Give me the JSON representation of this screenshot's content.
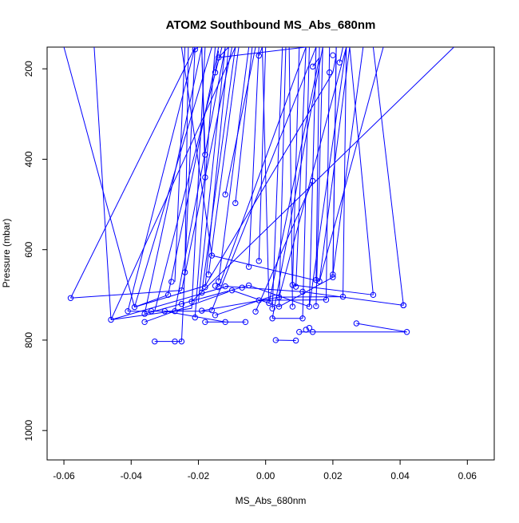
{
  "chart_data": {
    "type": "scatter",
    "title": "ATOM2 Southbound MS_Abs_680nm",
    "xlabel": "MS_Abs_680nm",
    "ylabel": "Pressure (mbar)",
    "xlim": [
      -0.065,
      0.068
    ],
    "ylim": [
      1065,
      152
    ],
    "y_reversed": true,
    "x_ticks": [
      -0.06,
      -0.04,
      -0.02,
      0.0,
      0.02,
      0.04,
      0.06
    ],
    "x_tick_labels": [
      "-0.06",
      "-0.04",
      "-0.02",
      "0.00",
      "0.02",
      "0.04",
      "0.06"
    ],
    "y_ticks": [
      200,
      400,
      600,
      800,
      1000
    ],
    "y_tick_labels": [
      "200",
      "400",
      "600",
      "800",
      "1000"
    ],
    "grid": false,
    "series_color": "#0000ff",
    "marker": "open-circle",
    "connected": true,
    "points": [
      {
        "x": -0.058,
        "y": 707
      },
      {
        "x": -0.025,
        "y": 690
      },
      {
        "x": -0.046,
        "y": 755
      },
      {
        "x": -0.039,
        "y": 727
      },
      {
        "x": -0.024,
        "y": 650
      },
      {
        "x": -0.041,
        "y": 736
      },
      {
        "x": -0.036,
        "y": 742
      },
      {
        "x": -0.034,
        "y": 736
      },
      {
        "x": -0.03,
        "y": 736
      },
      {
        "x": -0.027,
        "y": 736
      },
      {
        "x": -0.022,
        "y": 715
      },
      {
        "x": -0.036,
        "y": 760
      },
      {
        "x": -0.029,
        "y": 700
      },
      {
        "x": -0.025,
        "y": 720
      },
      {
        "x": -0.033,
        "y": 803
      },
      {
        "x": -0.027,
        "y": 803
      },
      {
        "x": -0.025,
        "y": 803
      },
      {
        "x": -0.028,
        "y": 671
      },
      {
        "x": -0.021,
        "y": 750
      },
      {
        "x": -0.018,
        "y": 760
      },
      {
        "x": -0.012,
        "y": 760
      },
      {
        "x": -0.006,
        "y": 760
      },
      {
        "x": -0.019,
        "y": 735
      },
      {
        "x": -0.015,
        "y": 745
      },
      {
        "x": -0.017,
        "y": 655
      },
      {
        "x": -0.018,
        "y": 683
      },
      {
        "x": -0.019,
        "y": 695
      },
      {
        "x": -0.014,
        "y": 670
      },
      {
        "x": -0.012,
        "y": 681
      },
      {
        "x": -0.016,
        "y": 613
      },
      {
        "x": -0.018,
        "y": 390
      },
      {
        "x": -0.018,
        "y": 440
      },
      {
        "x": -0.012,
        "y": 478
      },
      {
        "x": -0.009,
        "y": 497
      },
      {
        "x": -0.01,
        "y": 690
      },
      {
        "x": -0.007,
        "y": 684
      },
      {
        "x": -0.005,
        "y": 679
      },
      {
        "x": -0.005,
        "y": 638
      },
      {
        "x": -0.002,
        "y": 625
      },
      {
        "x": -0.002,
        "y": 712
      },
      {
        "x": -0.003,
        "y": 737
      },
      {
        "x": 0.001,
        "y": 718
      },
      {
        "x": 0.002,
        "y": 752
      },
      {
        "x": 0.002,
        "y": 730
      },
      {
        "x": 0.004,
        "y": 726
      },
      {
        "x": 0.004,
        "y": 705
      },
      {
        "x": 0.003,
        "y": 800
      },
      {
        "x": 0.009,
        "y": 801
      },
      {
        "x": 0.008,
        "y": 726
      },
      {
        "x": 0.008,
        "y": 678
      },
      {
        "x": 0.009,
        "y": 682
      },
      {
        "x": 0.011,
        "y": 693
      },
      {
        "x": 0.011,
        "y": 752
      },
      {
        "x": 0.01,
        "y": 782
      },
      {
        "x": 0.012,
        "y": 777
      },
      {
        "x": 0.013,
        "y": 773
      },
      {
        "x": 0.014,
        "y": 782
      },
      {
        "x": 0.013,
        "y": 726
      },
      {
        "x": 0.015,
        "y": 725
      },
      {
        "x": 0.015,
        "y": 667
      },
      {
        "x": 0.016,
        "y": 670
      },
      {
        "x": 0.018,
        "y": 711
      },
      {
        "x": 0.02,
        "y": 655
      },
      {
        "x": 0.02,
        "y": 661
      },
      {
        "x": 0.023,
        "y": 704
      },
      {
        "x": 0.027,
        "y": 763
      },
      {
        "x": 0.032,
        "y": 700
      },
      {
        "x": 0.041,
        "y": 723
      },
      {
        "x": 0.042,
        "y": 782
      },
      {
        "x": 0.014,
        "y": 448
      },
      {
        "x": -0.014,
        "y": 175
      },
      {
        "x": -0.015,
        "y": 208
      },
      {
        "x": -0.021,
        "y": 157
      },
      {
        "x": -0.002,
        "y": 171
      },
      {
        "x": 0.014,
        "y": 195
      },
      {
        "x": 0.019,
        "y": 208
      },
      {
        "x": 0.02,
        "y": 170
      },
      {
        "x": 0.022,
        "y": 186
      },
      {
        "x": 0.041,
        "y": 723
      },
      {
        "x": -0.014,
        "y": 683
      },
      {
        "x": -0.016,
        "y": 734
      },
      {
        "x": -0.015,
        "y": 680
      }
    ],
    "segments": [
      [
        -0.058,
        707,
        -0.025,
        690
      ],
      [
        -0.058,
        707,
        -0.058,
        707
      ],
      [
        -0.046,
        755,
        -0.022,
        730
      ],
      [
        -0.046,
        755,
        -0.011,
        680
      ],
      [
        -0.039,
        727,
        -0.029,
        700
      ],
      [
        -0.039,
        727,
        -0.018,
        680
      ],
      [
        -0.041,
        736,
        -0.016,
        736
      ],
      [
        -0.036,
        742,
        -0.005,
        679
      ],
      [
        -0.036,
        760,
        -0.011,
        693
      ],
      [
        -0.033,
        803,
        -0.025,
        803
      ],
      [
        -0.03,
        736,
        -0.012,
        760
      ],
      [
        -0.018,
        760,
        -0.006,
        760
      ],
      [
        -0.019,
        735,
        0.004,
        705
      ],
      [
        -0.015,
        745,
        0.003,
        700
      ],
      [
        -0.012,
        681,
        0.011,
        693
      ],
      [
        -0.01,
        690,
        0.004,
        726
      ],
      [
        -0.005,
        679,
        0.013,
        726
      ],
      [
        -0.002,
        712,
        0.018,
        711
      ],
      [
        0.004,
        726,
        0.02,
        661
      ],
      [
        0.004,
        705,
        0.023,
        704
      ],
      [
        0.008,
        678,
        0.032,
        700
      ],
      [
        0.011,
        693,
        0.041,
        723
      ],
      [
        0.002,
        752,
        0.011,
        752
      ],
      [
        0.003,
        800,
        0.009,
        801
      ],
      [
        0.01,
        782,
        0.014,
        782
      ],
      [
        0.027,
        763,
        0.042,
        782
      ],
      [
        0.014,
        782,
        0.042,
        782
      ],
      [
        -0.003,
        737,
        0.014,
        448
      ],
      [
        -0.016,
        613,
        0.016,
        670
      ],
      [
        -0.018,
        680,
        0.02,
        208
      ],
      [
        -0.022,
        715,
        0.056,
        152
      ],
      [
        -0.046,
        755,
        -0.009,
        152
      ],
      [
        -0.036,
        742,
        -0.019,
        152
      ],
      [
        -0.041,
        736,
        -0.021,
        152
      ],
      [
        -0.039,
        727,
        -0.016,
        152
      ],
      [
        -0.033,
        736,
        -0.013,
        152
      ],
      [
        -0.029,
        700,
        -0.014,
        152
      ],
      [
        -0.025,
        690,
        -0.01,
        152
      ],
      [
        -0.027,
        671,
        -0.024,
        152
      ],
      [
        -0.024,
        650,
        -0.023,
        152
      ],
      [
        -0.022,
        730,
        -0.018,
        152
      ],
      [
        -0.021,
        750,
        -0.015,
        152
      ],
      [
        -0.02,
        715,
        -0.012,
        152
      ],
      [
        -0.018,
        683,
        -0.011,
        152
      ],
      [
        -0.019,
        695,
        -0.009,
        152
      ],
      [
        -0.017,
        655,
        -0.008,
        152
      ],
      [
        -0.018,
        440,
        -0.019,
        152
      ],
      [
        -0.018,
        390,
        -0.019,
        152
      ],
      [
        -0.012,
        478,
        -0.003,
        152
      ],
      [
        -0.009,
        497,
        -0.004,
        152
      ],
      [
        -0.014,
        670,
        -0.005,
        152
      ],
      [
        -0.005,
        638,
        -0.002,
        152
      ],
      [
        -0.002,
        625,
        0.0,
        152
      ],
      [
        0.001,
        718,
        -0.001,
        152
      ],
      [
        0.002,
        730,
        0.005,
        152
      ],
      [
        0.004,
        726,
        0.006,
        152
      ],
      [
        0.008,
        726,
        0.007,
        152
      ],
      [
        0.008,
        678,
        0.01,
        152
      ],
      [
        0.009,
        682,
        0.012,
        152
      ],
      [
        0.011,
        752,
        0.013,
        152
      ],
      [
        0.013,
        726,
        0.015,
        152
      ],
      [
        0.015,
        725,
        0.017,
        152
      ],
      [
        0.015,
        667,
        0.016,
        152
      ],
      [
        0.018,
        711,
        0.019,
        152
      ],
      [
        0.02,
        655,
        0.021,
        152
      ],
      [
        0.023,
        704,
        0.024,
        152
      ],
      [
        0.02,
        661,
        0.021,
        152
      ],
      [
        0.016,
        670,
        0.025,
        152
      ],
      [
        -0.058,
        707,
        -0.021,
        152
      ],
      [
        -0.046,
        755,
        -0.051,
        152
      ],
      [
        -0.039,
        727,
        -0.06,
        152
      ],
      [
        -0.016,
        613,
        -0.025,
        152
      ],
      [
        0.041,
        723,
        0.032,
        152
      ],
      [
        0.032,
        700,
        0.025,
        152
      ],
      [
        0.016,
        670,
        0.035,
        152
      ],
      [
        0.02,
        655,
        0.029,
        152
      ],
      [
        0.013,
        726,
        0.024,
        152
      ],
      [
        0.02,
        208,
        0.021,
        170
      ],
      [
        0.022,
        186,
        0.023,
        152
      ],
      [
        0.014,
        195,
        0.016,
        175
      ],
      [
        -0.014,
        175,
        -0.011,
        152
      ],
      [
        -0.015,
        208,
        -0.014,
        160
      ],
      [
        -0.002,
        171,
        -0.001,
        152
      ],
      [
        -0.021,
        157,
        -0.02,
        152
      ],
      [
        -0.014,
        175,
        0.012,
        152
      ],
      [
        -0.014,
        683,
        0.012,
        152
      ],
      [
        -0.027,
        736,
        -0.012,
        152
      ],
      [
        -0.025,
        803,
        -0.021,
        152
      ],
      [
        -0.016,
        734,
        0.015,
        152
      ],
      [
        0.001,
        718,
        0.016,
        175
      ],
      [
        0.004,
        705,
        0.024,
        152
      ],
      [
        0.002,
        752,
        0.017,
        152
      ]
    ]
  }
}
